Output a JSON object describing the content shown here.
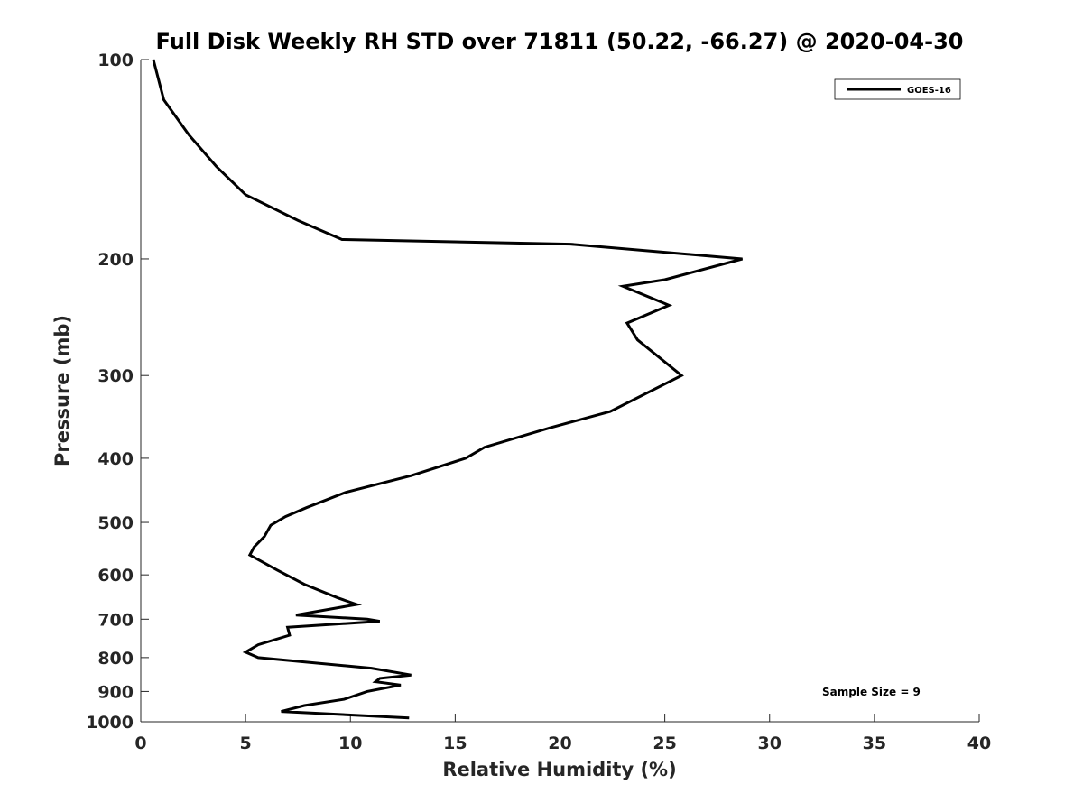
{
  "chart_data": {
    "type": "line",
    "title": "Full Disk Weekly RH STD over 71811 (50.22, -66.27) @ 2020-04-30",
    "xlabel": "Relative Humidity (%)",
    "ylabel": "Pressure (mb)",
    "xlim": [
      0,
      40
    ],
    "ylim": [
      100,
      1000
    ],
    "y_scale": "log",
    "y_reversed": true,
    "x_ticks": [
      0,
      5,
      10,
      15,
      20,
      25,
      30,
      35,
      40
    ],
    "y_ticks": [
      100,
      200,
      300,
      400,
      500,
      600,
      700,
      800,
      900,
      1000
    ],
    "grid": false,
    "legend_position": "top-right",
    "annotation": "Sample Size = 9",
    "series": [
      {
        "name": "GOES-16",
        "color": "#000000",
        "x": [
          0.6,
          1.1,
          2.3,
          3.6,
          5.0,
          7.5,
          9.6,
          20.5,
          28.7,
          25.0,
          23.0,
          25.2,
          23.2,
          23.7,
          25.8,
          22.4,
          19.5,
          16.4,
          15.5,
          12.9,
          9.8,
          7.9,
          6.9,
          6.2,
          5.9,
          5.4,
          5.2,
          6.5,
          7.8,
          9.4,
          10.3,
          7.4,
          10.8,
          11.4,
          7.0,
          7.1,
          5.6,
          5.0,
          5.6,
          11.0,
          12.9,
          11.4,
          11.2,
          12.4,
          10.8,
          9.7,
          7.8,
          6.7,
          12.8
        ],
        "y": [
          100,
          115,
          130,
          145,
          160,
          175,
          187,
          190,
          200,
          215,
          220,
          235,
          250,
          265,
          300,
          340,
          360,
          385,
          400,
          425,
          450,
          475,
          490,
          505,
          525,
          545,
          560,
          590,
          620,
          650,
          665,
          690,
          700,
          705,
          720,
          740,
          765,
          785,
          800,
          830,
          850,
          860,
          870,
          880,
          900,
          925,
          945,
          965,
          987
        ]
      }
    ]
  }
}
